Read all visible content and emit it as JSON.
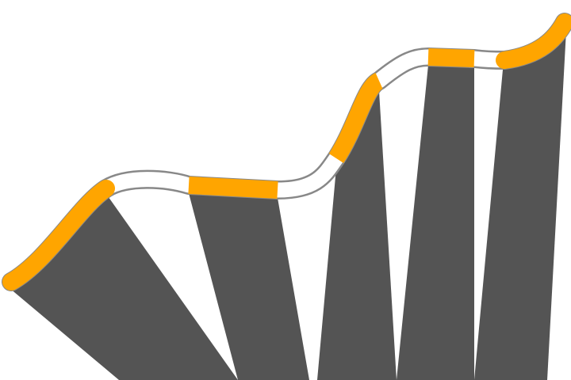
{
  "colors": {
    "background": "#ffffff",
    "panel_fill": "#545454",
    "track_outline": "#888888",
    "track_fill": "#ffffff",
    "highlight": "#ffa500"
  }
}
